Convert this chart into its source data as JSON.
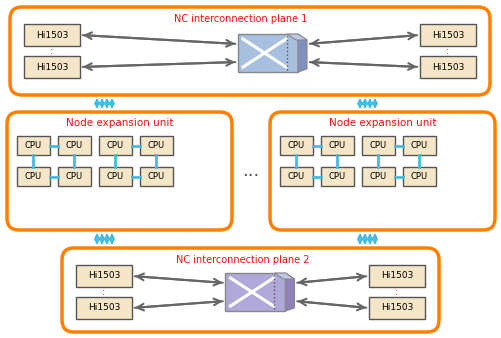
{
  "bg_color": "#ffffff",
  "orange": "#FF8000",
  "box_fill": "#F5E6C8",
  "box_edge": "#555555",
  "switch_fill_top": "#A8C0E0",
  "switch_fill_bot": "#B0A8D8",
  "switch_side_top": "#8090C0",
  "switch_side_bot": "#9080B8",
  "cyan": "#44BBDD",
  "gray": "#666666",
  "red_text": "#EE1111",
  "label_top": "NC interconnection plane 1",
  "label_bot": "NC interconnection plane 2",
  "label_node": "Node expansion unit",
  "hi_label": "Hi1503",
  "cpu_label": "CPU"
}
